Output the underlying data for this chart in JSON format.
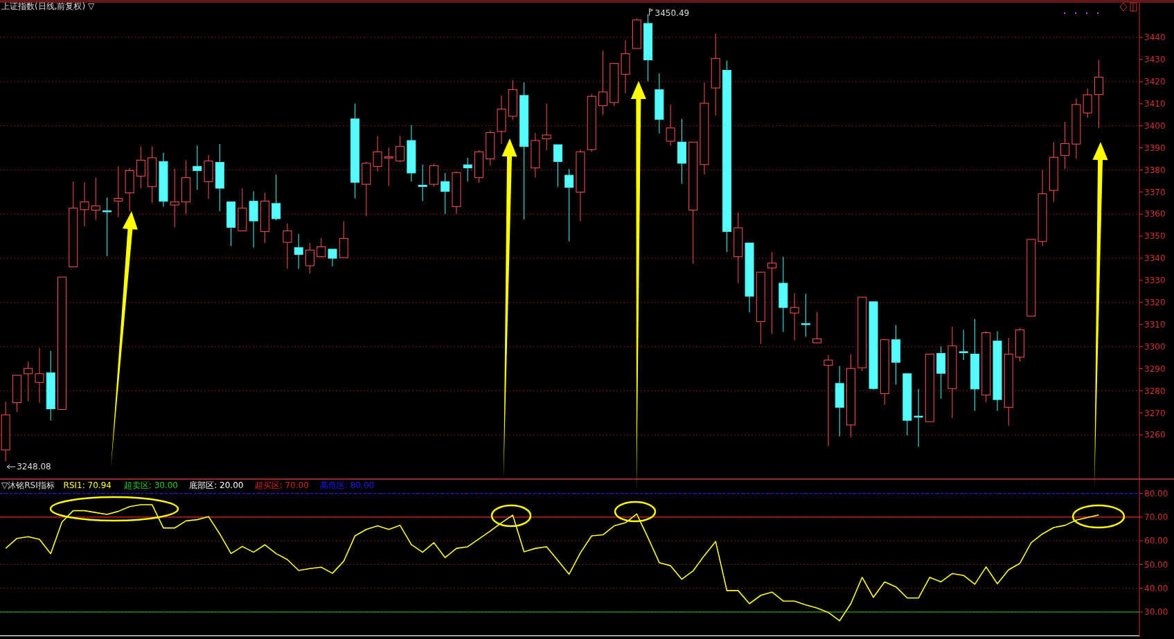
{
  "chart_data": [
    {
      "type": "candlestick",
      "title": "上证指数(日线,前复权) ▽",
      "categories": [
        null,
        null,
        null,
        null,
        null,
        null,
        null,
        null,
        null,
        null,
        null,
        null,
        null,
        null,
        null,
        null,
        null,
        null,
        null,
        null,
        null,
        null,
        null,
        null,
        null,
        null,
        null,
        null,
        null,
        null,
        null,
        null,
        null,
        null,
        null,
        null,
        null,
        null,
        null,
        null,
        null,
        null,
        null,
        null,
        null,
        null,
        null,
        null,
        null,
        null,
        null,
        null,
        null,
        null,
        null,
        null,
        null,
        null,
        null,
        null,
        null,
        null,
        null,
        null,
        null,
        null,
        null,
        null,
        null,
        null,
        null,
        null,
        null,
        null,
        null,
        null,
        null,
        null,
        null,
        null,
        null,
        null,
        null,
        null,
        null,
        null,
        null,
        null,
        null,
        null,
        null,
        null,
        null,
        null,
        null,
        null,
        null,
        null
      ],
      "ohlc": [
        [
          3253.2,
          3275.0,
          3248.08,
          3269.1
        ],
        [
          3274.6,
          3287.0,
          3270.4,
          3287.0
        ],
        [
          3287.7,
          3293.2,
          3275.3,
          3290.1
        ],
        [
          3283.8,
          3299.4,
          3274.6,
          3287.7
        ],
        [
          3288.1,
          3298.0,
          3266.6,
          3271.8
        ],
        [
          3271.5,
          3331.5,
          3271.5,
          3331.5
        ],
        [
          3336.1,
          3374.7,
          3336.1,
          3362.7
        ],
        [
          3362.0,
          3374.4,
          3354.5,
          3365.5
        ],
        [
          3361.8,
          3376.5,
          3357.5,
          3363.7
        ],
        [
          3361.5,
          3367.5,
          3341.0,
          3361.1
        ],
        [
          3365.9,
          3381.6,
          3358.6,
          3367.1
        ],
        [
          3369.6,
          3380.9,
          3361.3,
          3379.7
        ],
        [
          3377.2,
          3390.6,
          3371.7,
          3384.4
        ],
        [
          3372.4,
          3390.6,
          3365.1,
          3385.5
        ],
        [
          3383.8,
          3387.8,
          3363.4,
          3365.8
        ],
        [
          3364.1,
          3380.6,
          3354.0,
          3365.5
        ],
        [
          3365.5,
          3384.4,
          3360.0,
          3376.5
        ],
        [
          3381.6,
          3391.0,
          3371.0,
          3379.7
        ],
        [
          3374.7,
          3386.8,
          3366.9,
          3384.1
        ],
        [
          3383.4,
          3391.7,
          3361.3,
          3371.7
        ],
        [
          3365.5,
          3365.5,
          3345.5,
          3354.0
        ],
        [
          3352.4,
          3371.7,
          3352.4,
          3362.7
        ],
        [
          3365.8,
          3370.3,
          3344.8,
          3356.9
        ],
        [
          3352.1,
          3369.6,
          3346.9,
          3365.9
        ],
        [
          3364.8,
          3377.9,
          3357.2,
          3357.9
        ],
        [
          3347.2,
          3355.8,
          3335.2,
          3352.4
        ],
        [
          3344.8,
          3351.0,
          3335.2,
          3341.7
        ],
        [
          3336.6,
          3346.9,
          3333.1,
          3343.7
        ],
        [
          3340.7,
          3349.2,
          3340.3,
          3345.2
        ],
        [
          3344.1,
          3344.1,
          3336.3,
          3340.0
        ],
        [
          3340.3,
          3356.8,
          3340.3,
          3349.0
        ],
        [
          3403.1,
          3410.0,
          3367.1,
          3374.4
        ],
        [
          3373.5,
          3383.7,
          3359.0,
          3383.0
        ],
        [
          3381.6,
          3395.4,
          3379.3,
          3388.2
        ],
        [
          3385.4,
          3390.0,
          3372.8,
          3385.9
        ],
        [
          3384.1,
          3395.4,
          3383.4,
          3390.6
        ],
        [
          3393.3,
          3400.3,
          3374.8,
          3378.6
        ],
        [
          3373.1,
          3382.4,
          3365.9,
          3372.5
        ],
        [
          3373.5,
          3382.7,
          3372.4,
          3381.9
        ],
        [
          3374.7,
          3378.6,
          3360.0,
          3370.3
        ],
        [
          3363.4,
          3379.3,
          3360.0,
          3378.8
        ],
        [
          3382.3,
          3385.5,
          3374.8,
          3380.9
        ],
        [
          3376.5,
          3388.9,
          3374.2,
          3388.2
        ],
        [
          3385.0,
          3397.9,
          3382.0,
          3396.9
        ],
        [
          3397.4,
          3413.7,
          3391.7,
          3407.5
        ],
        [
          3404.3,
          3420.6,
          3402.7,
          3416.4
        ],
        [
          3413.7,
          3419.6,
          3357.6,
          3390.6
        ],
        [
          3380.9,
          3396.7,
          3376.5,
          3393.3
        ],
        [
          3394.1,
          3410.0,
          3388.9,
          3395.8
        ],
        [
          3391.4,
          3391.4,
          3372.4,
          3383.8
        ],
        [
          3377.6,
          3380.4,
          3347.6,
          3372.1
        ],
        [
          3369.9,
          3389.2,
          3356.8,
          3388.2
        ],
        [
          3389.2,
          3414.4,
          3388.2,
          3413.3
        ],
        [
          3409.1,
          3433.9,
          3405.0,
          3415.3
        ],
        [
          3410.5,
          3428.4,
          3408.9,
          3428.2
        ],
        [
          3423.3,
          3438.8,
          3414.7,
          3432.6
        ],
        [
          3435.0,
          3448.5,
          3435.0,
          3447.9
        ],
        [
          3446.3,
          3450.49,
          3420.2,
          3429.8
        ],
        [
          3416.3,
          3423.7,
          3396.5,
          3402.9
        ],
        [
          3393.0,
          3409.6,
          3391.0,
          3399.0
        ],
        [
          3392.6,
          3403.1,
          3373.7,
          3383.0
        ],
        [
          3361.8,
          3392.6,
          3337.5,
          3392.6
        ],
        [
          3382.4,
          3419.6,
          3377.9,
          3410.2
        ],
        [
          3417.1,
          3441.7,
          3404.7,
          3430.5
        ],
        [
          3425.1,
          3429.5,
          3342.8,
          3352.1
        ],
        [
          3340.7,
          3360.7,
          3328.7,
          3353.8
        ],
        [
          3346.9,
          3346.9,
          3315.5,
          3322.8
        ],
        [
          3311.3,
          3333.7,
          3301.2,
          3333.7
        ],
        [
          3335.6,
          3342.8,
          3305.8,
          3337.8
        ],
        [
          3328.7,
          3340.7,
          3306.7,
          3317.7
        ],
        [
          3315.2,
          3324.2,
          3302.8,
          3317.7
        ],
        [
          3310.4,
          3323.9,
          3304.5,
          3310.0
        ],
        [
          3301.7,
          3315.6,
          3301.4,
          3303.5
        ],
        [
          3291.5,
          3296.2,
          3254.9,
          3293.9
        ],
        [
          3283.3,
          3291.1,
          3259.4,
          3272.5
        ],
        [
          3264.5,
          3296.6,
          3259.0,
          3290.1
        ],
        [
          3290.4,
          3322.4,
          3288.8,
          3322.4
        ],
        [
          3320.3,
          3320.3,
          3280.5,
          3281.0
        ],
        [
          3278.7,
          3303.5,
          3273.6,
          3303.1
        ],
        [
          3303.1,
          3309.7,
          3282.8,
          3292.9
        ],
        [
          3287.7,
          3287.7,
          3259.8,
          3266.6
        ],
        [
          3268.5,
          3280.8,
          3254.6,
          3268.1
        ],
        [
          3266.0,
          3296.6,
          3266.0,
          3296.6
        ],
        [
          3296.9,
          3300.1,
          3276.4,
          3287.9
        ],
        [
          3281.0,
          3309.0,
          3267.7,
          3300.3
        ],
        [
          3297.7,
          3307.6,
          3293.9,
          3297.4
        ],
        [
          3296.6,
          3312.5,
          3270.9,
          3280.8
        ],
        [
          3278.0,
          3306.9,
          3274.8,
          3306.3
        ],
        [
          3302.5,
          3306.9,
          3270.9,
          3276.0
        ],
        [
          3272.5,
          3303.9,
          3264.2,
          3296.6
        ],
        [
          3295.2,
          3308.3,
          3293.2,
          3307.6
        ],
        [
          3313.8,
          3348.5,
          3313.8,
          3348.5
        ],
        [
          3347.6,
          3379.9,
          3345.5,
          3369.2
        ],
        [
          3370.7,
          3392.6,
          3365.5,
          3385.7
        ],
        [
          3386.6,
          3401.7,
          3380.4,
          3391.9
        ],
        [
          3391.7,
          3412.3,
          3385.0,
          3409.6
        ],
        [
          3405.8,
          3416.9,
          3403.6,
          3414.0
        ],
        [
          3414.1,
          3429.8,
          3399.0,
          3422.0
        ]
      ],
      "colors": [
        "#ff5555",
        "#ff5555",
        "#ff5555",
        "#ff5555",
        "#54fcfc",
        "#ff5555",
        "#ff5555",
        "#ff5555",
        "#ff5555",
        "#54fcfc",
        "#ff5555",
        "#ff5555",
        "#ff5555",
        "#ff5555",
        "#54fcfc",
        "#ff5555",
        "#ff5555",
        "#54fcfc",
        "#ff5555",
        "#54fcfc",
        "#54fcfc",
        "#ff5555",
        "#54fcfc",
        "#ff5555",
        "#54fcfc",
        "#ff5555",
        "#54fcfc",
        "#ff5555",
        "#ff5555",
        "#54fcfc",
        "#ff5555",
        "#54fcfc",
        "#ff5555",
        "#ff5555",
        "#ff5555",
        "#ff5555",
        "#54fcfc",
        "#54fcfc",
        "#ff5555",
        "#54fcfc",
        "#ff5555",
        "#54fcfc",
        "#ff5555",
        "#ff5555",
        "#ff5555",
        "#ff5555",
        "#54fcfc",
        "#ff5555",
        "#ff5555",
        "#54fcfc",
        "#54fcfc",
        "#ff5555",
        "#ff5555",
        "#ff5555",
        "#ff5555",
        "#ff5555",
        "#ff5555",
        "#54fcfc",
        "#54fcfc",
        "#ff5555",
        "#54fcfc",
        "#ff5555",
        "#ff5555",
        "#ff5555",
        "#54fcfc",
        "#ff5555",
        "#54fcfc",
        "#ff5555",
        "#ff5555",
        "#54fcfc",
        "#ff5555",
        "#54fcfc",
        "#ff5555",
        "#ff5555",
        "#54fcfc",
        "#ff5555",
        "#ff5555",
        "#54fcfc",
        "#ff5555",
        "#54fcfc",
        "#54fcfc",
        "#54fcfc",
        "#ff5555",
        "#54fcfc",
        "#ff5555",
        "#54fcfc",
        "#54fcfc",
        "#ff5555",
        "#54fcfc",
        "#ff5555",
        "#ff5555",
        "#ff5555",
        "#ff5555",
        "#ff5555",
        "#ff5555",
        "#ff5555",
        "#ff5555",
        "#ff5555"
      ],
      "ylim": [
        3240,
        3456
      ],
      "yticks": [
        3260,
        3270,
        3280,
        3290,
        3300,
        3310,
        3320,
        3330,
        3340,
        3350,
        3360,
        3370,
        3380,
        3390,
        3400,
        3410,
        3420,
        3430,
        3440
      ],
      "grid": true,
      "annotations": [
        "3450.49",
        "3248.08"
      ]
    },
    {
      "type": "line",
      "title": "▽沐铭RSI指标",
      "categories": [
        null,
        null,
        null,
        null,
        null,
        null,
        null,
        null,
        null,
        null,
        null,
        null,
        null,
        null,
        null,
        null,
        null,
        null,
        null,
        null,
        null,
        null,
        null,
        null,
        null,
        null,
        null,
        null,
        null,
        null,
        null,
        null,
        null,
        null,
        null,
        null,
        null,
        null,
        null,
        null,
        null,
        null,
        null,
        null,
        null,
        null,
        null,
        null,
        null,
        null,
        null,
        null,
        null,
        null,
        null,
        null,
        null,
        null,
        null,
        null,
        null,
        null,
        null,
        null,
        null,
        null,
        null,
        null,
        null,
        null,
        null,
        null,
        null,
        null,
        null,
        null,
        null,
        null,
        null,
        null,
        null,
        null,
        null,
        null,
        null,
        null,
        null,
        null,
        null,
        null,
        null,
        null,
        null,
        null,
        null,
        null,
        null,
        null
      ],
      "series": [
        {
          "name": "RSI1: 70.94",
          "color": "#ffff33",
          "values": [
            56.8,
            61.0,
            61.7,
            60.6,
            54.6,
            67.9,
            72.7,
            72.7,
            71.9,
            71.1,
            72.4,
            74.4,
            75.2,
            75.2,
            65.4,
            65.4,
            68.4,
            68.9,
            70.2,
            62.9,
            54.6,
            57.6,
            55.2,
            58.3,
            54.6,
            52.1,
            47.5,
            48.3,
            48.9,
            46.3,
            51.4,
            62.1,
            64.8,
            66.3,
            64.8,
            66.5,
            58.4,
            55.2,
            59.2,
            52.9,
            56.8,
            57.5,
            60.8,
            64.1,
            67.6,
            70.8,
            55.4,
            56.8,
            57.5,
            51.7,
            45.9,
            54.9,
            62.1,
            62.5,
            66.3,
            67.6,
            71.3,
            61.3,
            50.8,
            49.5,
            43.8,
            47.3,
            53.8,
            59.7,
            39.0,
            39.0,
            33.5,
            37.0,
            38.4,
            34.6,
            34.6,
            33.0,
            31.7,
            29.8,
            26.3,
            33.5,
            44.6,
            36.2,
            42.7,
            40.6,
            35.9,
            35.9,
            44.6,
            42.7,
            46.2,
            45.4,
            41.7,
            49.0,
            41.9,
            47.8,
            50.5,
            59.2,
            62.9,
            65.6,
            66.5,
            68.7,
            69.8,
            70.9
          ]
        }
      ],
      "ylim": [
        19.5,
        86
      ],
      "yticks": [
        {
          "value": 30,
          "label": "30.00"
        },
        {
          "value": 40,
          "label": "40.00"
        },
        {
          "value": 50,
          "label": "50.00"
        },
        {
          "value": 60,
          "label": "60.00"
        },
        {
          "value": 70,
          "label": "70.00"
        },
        {
          "value": 80,
          "label": "80.00"
        }
      ],
      "grid": true,
      "ref_lines": [
        {
          "axis": "y",
          "value": 30,
          "label": "超卖区: 30.00",
          "color": "#22cc22",
          "line_style": "solid"
        },
        {
          "axis": "y",
          "value": 20,
          "label": "底部区: 20.00",
          "color": "#ffffff",
          "line_style": "solid"
        },
        {
          "axis": "y",
          "value": 70,
          "label": "超买区: 70.00",
          "color": "#dd2222",
          "line_style": "solid"
        },
        {
          "axis": "y",
          "value": 80,
          "label": "高危区: 80.00",
          "color": "#1a1aff",
          "line_style": "dashed"
        }
      ]
    }
  ]
}
